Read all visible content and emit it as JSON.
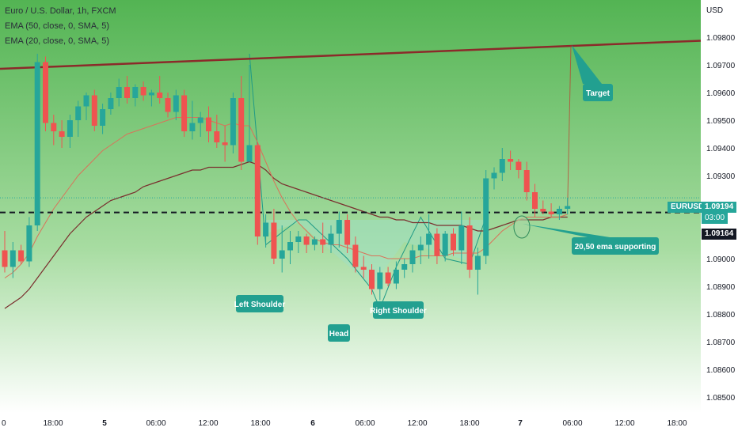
{
  "header": {
    "symbol_line": "Euro / U.S. Dollar, 1h, FXCM",
    "ema_50_line": "EMA (50, close, 0, SMA, 5)",
    "ema_20_line": "EMA (20, close, 0, SMA, 5)"
  },
  "price_axis": {
    "currency": "USD",
    "ticks": [
      "1.09800",
      "1.09700",
      "1.09600",
      "1.09500",
      "1.09400",
      "1.09300",
      "1.09000",
      "1.08900",
      "1.08800",
      "1.08700",
      "1.08600",
      "1.08500"
    ]
  },
  "badges": {
    "symbol": "EURUSD",
    "last_price": "1.09194",
    "countdown": "03:00",
    "level_price": "1.09164"
  },
  "annotations": {
    "left_shoulder": "Left Shoulder",
    "head": "Head",
    "right_shoulder": "Right Shoulder",
    "target": "Target",
    "ema_support": "20,50 ema supporting"
  },
  "colors": {
    "up": "#26a69a",
    "down": "#ef5350",
    "trendline": "#8b2a2a",
    "ema50": "#7a2e2e",
    "ema20": "#d9735a",
    "label_bg": "#22a090",
    "bg_top": "#53b453",
    "bg_bottom": "#ffffff"
  },
  "chart_data": {
    "type": "candlestick",
    "symbol": "EURUSD",
    "timeframe": "1h",
    "ylim": [
      1.0845,
      1.0985
    ],
    "x_ticks": [
      "18:00",
      "5",
      "06:00",
      "12:00",
      "18:00",
      "6",
      "06:00",
      "12:00",
      "18:00",
      "7",
      "06:00",
      "12:00",
      "18:00"
    ],
    "candles": [
      [
        1.0903,
        1.091,
        1.0895,
        1.0897
      ],
      [
        1.0897,
        1.0906,
        1.0893,
        1.0903
      ],
      [
        1.0903,
        1.0905,
        1.0898,
        1.0899
      ],
      [
        1.0899,
        1.0915,
        1.0897,
        1.0912
      ],
      [
        1.0912,
        1.0974,
        1.091,
        1.0971
      ],
      [
        1.0971,
        1.0973,
        1.0946,
        1.0949
      ],
      [
        1.0949,
        1.0952,
        1.0941,
        1.0946
      ],
      [
        1.0946,
        1.095,
        1.094,
        1.0944
      ],
      [
        1.0944,
        1.0952,
        1.094,
        1.095
      ],
      [
        1.095,
        1.0957,
        1.0944,
        1.0955
      ],
      [
        1.0955,
        1.096,
        1.095,
        1.0959
      ],
      [
        1.0959,
        1.0961,
        1.0946,
        1.0948
      ],
      [
        1.0948,
        1.0956,
        1.0945,
        1.0954
      ],
      [
        1.0954,
        1.096,
        1.0952,
        1.0958
      ],
      [
        1.0958,
        1.0965,
        1.0955,
        1.0962
      ],
      [
        1.0962,
        1.0966,
        1.0956,
        1.0958
      ],
      [
        1.0958,
        1.0963,
        1.0955,
        1.0962
      ],
      [
        1.0962,
        1.0964,
        1.0957,
        1.0959
      ],
      [
        1.0959,
        1.0961,
        1.0955,
        1.096
      ],
      [
        1.096,
        1.0966,
        1.0956,
        1.0958
      ],
      [
        1.0958,
        1.096,
        1.0951,
        1.0953
      ],
      [
        1.0953,
        1.0961,
        1.095,
        1.0959
      ],
      [
        1.0959,
        1.0961,
        1.0944,
        1.0946
      ],
      [
        1.0946,
        1.0957,
        1.0943,
        1.0949
      ],
      [
        1.0949,
        1.0953,
        1.0944,
        1.0951
      ],
      [
        1.0951,
        1.0955,
        1.0942,
        1.0946
      ],
      [
        1.0946,
        1.0952,
        1.094,
        1.0942
      ],
      [
        1.0942,
        1.0948,
        1.0935,
        1.0941
      ],
      [
        1.0941,
        1.096,
        1.0938,
        1.0958
      ],
      [
        1.0958,
        1.0966,
        1.0932,
        1.0935
      ],
      [
        1.0935,
        1.097,
        1.0935,
        1.0941
      ],
      [
        1.0941,
        1.0942,
        1.0905,
        1.0908
      ],
      [
        1.0908,
        1.0916,
        1.0904,
        1.0913
      ],
      [
        1.0913,
        1.0918,
        1.0898,
        1.09
      ],
      [
        1.09,
        1.0912,
        1.0895,
        1.0903
      ],
      [
        1.0903,
        1.091,
        1.0898,
        1.0906
      ],
      [
        1.0906,
        1.091,
        1.0902,
        1.0908
      ],
      [
        1.0908,
        1.0909,
        1.0902,
        1.0905
      ],
      [
        1.0905,
        1.0908,
        1.0903,
        1.0907
      ],
      [
        1.0907,
        1.0913,
        1.0902,
        1.0905
      ],
      [
        1.0905,
        1.0912,
        1.0902,
        1.0909
      ],
      [
        1.0909,
        1.0917,
        1.0904,
        1.0914
      ],
      [
        1.0914,
        1.0916,
        1.0902,
        1.0905
      ],
      [
        1.0905,
        1.0908,
        1.0895,
        1.0897
      ],
      [
        1.0897,
        1.0901,
        1.0893,
        1.0896
      ],
      [
        1.0896,
        1.0898,
        1.0887,
        1.0889
      ],
      [
        1.0889,
        1.0897,
        1.0885,
        1.0895
      ],
      [
        1.0895,
        1.0897,
        1.089,
        1.0891
      ],
      [
        1.0891,
        1.0899,
        1.0889,
        1.0896
      ],
      [
        1.0896,
        1.09,
        1.0893,
        1.0898
      ],
      [
        1.0898,
        1.0905,
        1.0895,
        1.0903
      ],
      [
        1.0903,
        1.0908,
        1.0898,
        1.0905
      ],
      [
        1.0905,
        1.0916,
        1.09,
        1.0909
      ],
      [
        1.0909,
        1.0911,
        1.0898,
        1.0901
      ],
      [
        1.0901,
        1.091,
        1.0899,
        1.0909
      ],
      [
        1.0909,
        1.0911,
        1.0901,
        1.0903
      ],
      [
        1.0903,
        1.0917,
        1.0898,
        1.0912
      ],
      [
        1.0912,
        1.0915,
        1.0893,
        1.0896
      ],
      [
        1.0896,
        1.0904,
        1.0887,
        1.0901
      ],
      [
        1.0901,
        1.0932,
        1.0898,
        1.0929
      ],
      [
        1.0929,
        1.0933,
        1.0925,
        1.0931
      ],
      [
        1.0931,
        1.094,
        1.0928,
        1.0936
      ],
      [
        1.0936,
        1.0939,
        1.0932,
        1.0935
      ],
      [
        1.0935,
        1.0936,
        1.0929,
        1.0932
      ],
      [
        1.0932,
        1.0935,
        1.0921,
        1.0924
      ],
      [
        1.0924,
        1.0927,
        1.0915,
        1.0918
      ],
      [
        1.0918,
        1.0921,
        1.0916,
        1.0917
      ],
      [
        1.0917,
        1.092,
        1.0915,
        1.0916
      ],
      [
        1.0916,
        1.0919,
        1.0914,
        1.0918
      ],
      [
        1.0918,
        1.0922,
        1.0916,
        1.0919
      ]
    ],
    "series": [
      {
        "name": "EMA (50, close, 0, SMA, 5)",
        "color": "#7a2e2e",
        "values": [
          1.0882,
          1.0884,
          1.0886,
          1.0889,
          1.0893,
          1.0897,
          1.0901,
          1.0905,
          1.0909,
          1.0912,
          1.0915,
          1.0917,
          1.0919,
          1.0921,
          1.0922,
          1.0923,
          1.0924,
          1.0926,
          1.0927,
          1.0928,
          1.0929,
          1.093,
          1.0931,
          1.0932,
          1.0932,
          1.0933,
          1.0933,
          1.0933,
          1.0933,
          1.0934,
          1.0935,
          1.0934,
          1.0932,
          1.0929,
          1.0927,
          1.0926,
          1.0925,
          1.0924,
          1.0923,
          1.0922,
          1.0921,
          1.092,
          1.0919,
          1.0918,
          1.0917,
          1.0916,
          1.0915,
          1.0915,
          1.0914,
          1.0914,
          1.0913,
          1.0913,
          1.0913,
          1.0912,
          1.0912,
          1.0912,
          1.0912,
          1.0911,
          1.091,
          1.091,
          1.0911,
          1.0912,
          1.0913,
          1.0914,
          1.0914,
          1.0914,
          1.0914,
          1.0915,
          1.0915,
          1.0915
        ]
      },
      {
        "name": "EMA (20, close, 0, SMA, 5)",
        "color": "#d9735a",
        "values": [
          1.0893,
          1.0895,
          1.0898,
          1.0902,
          1.0908,
          1.0913,
          1.0918,
          1.0922,
          1.0926,
          1.093,
          1.0933,
          1.0936,
          1.0939,
          1.0941,
          1.0943,
          1.0945,
          1.0946,
          1.0947,
          1.0948,
          1.0949,
          1.095,
          1.0951,
          1.0951,
          1.0951,
          1.0951,
          1.095,
          1.0949,
          1.0948,
          1.0949,
          1.0948,
          1.0948,
          1.0942,
          1.0935,
          1.0928,
          1.0922,
          1.0917,
          1.0913,
          1.091,
          1.0907,
          1.0906,
          1.0905,
          1.0905,
          1.0904,
          1.0903,
          1.0902,
          1.0901,
          1.0901,
          1.09,
          1.09,
          1.09,
          1.09,
          1.0901,
          1.0901,
          1.0901,
          1.0901,
          1.0902,
          1.0902,
          1.0902,
          1.0902,
          1.0904,
          1.0907,
          1.091,
          1.0912,
          1.0914,
          1.0915,
          1.0915,
          1.0915,
          1.0915,
          1.0915,
          1.0916
        ]
      }
    ],
    "horizontal_level": 1.09164,
    "trendline": {
      "from": 1.097,
      "to": 1.0979
    },
    "projection": {
      "from_index": 69,
      "from_price": 1.0918,
      "to_label": "Target",
      "to_price": 1.0977
    },
    "pattern": "inverse head and shoulders",
    "grid": false,
    "legend": "top-left"
  }
}
